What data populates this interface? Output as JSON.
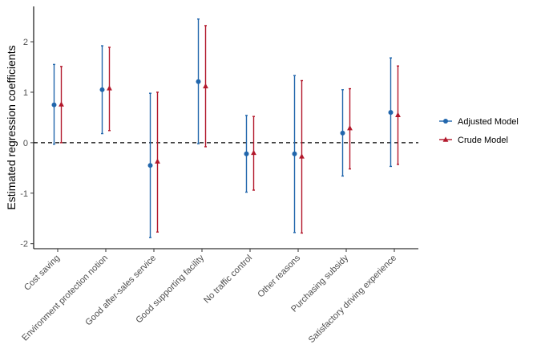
{
  "chart_data": {
    "type": "scatter",
    "subtype": "point-range with error bars",
    "ylabel": "Estimated regression coefficients",
    "xlabel": "",
    "ylim": [
      -2.1,
      2.7
    ],
    "yticks": [
      -2,
      -1,
      0,
      1,
      2
    ],
    "reference_line": {
      "y": 0,
      "style": "dashed"
    },
    "grid": false,
    "legend_position": "right",
    "categories": [
      "Cost saving",
      "Environment protection notion",
      "Good after-sales service",
      "Good supporting facility",
      "No traffic control",
      "Other reasons",
      "Purchasing subsidy",
      "Satisfactory driving experience"
    ],
    "series": [
      {
        "name": "Adjusted Model",
        "color": "#2166ac",
        "marker": "circle",
        "estimate": [
          0.75,
          1.05,
          -0.45,
          1.21,
          -0.22,
          -0.22,
          0.19,
          0.6
        ],
        "lower": [
          -0.03,
          0.18,
          -1.88,
          -0.02,
          -0.98,
          -1.78,
          -0.66,
          -0.47
        ],
        "upper": [
          1.55,
          1.92,
          0.98,
          2.45,
          0.54,
          1.33,
          1.05,
          1.68
        ]
      },
      {
        "name": "Crude Model",
        "color": "#b2182b",
        "marker": "triangle",
        "estimate": [
          0.76,
          1.08,
          -0.37,
          1.12,
          -0.2,
          -0.27,
          0.29,
          0.55
        ],
        "lower": [
          0.0,
          0.24,
          -1.77,
          -0.08,
          -0.94,
          -1.79,
          -0.52,
          -0.43
        ],
        "upper": [
          1.51,
          1.89,
          1.0,
          2.32,
          0.52,
          1.23,
          1.07,
          1.52
        ]
      }
    ]
  }
}
